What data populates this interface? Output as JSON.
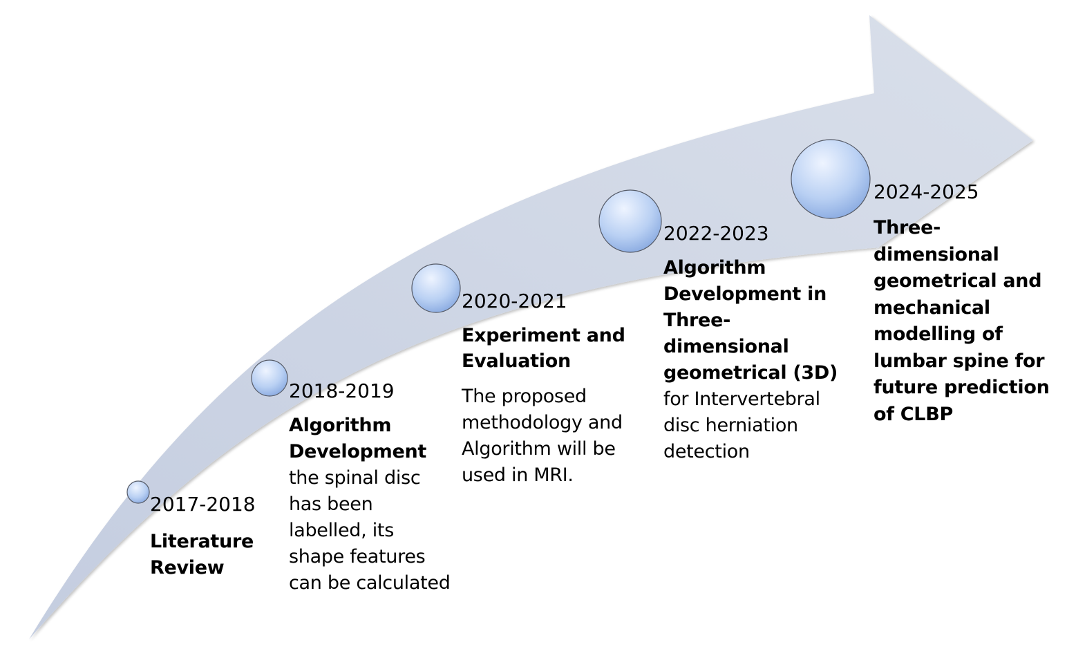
{
  "colors": {
    "arrow_fill_light": "#d9dfea",
    "arrow_fill_dark": "#c4cde0",
    "circle_highlight": "#eef4ff",
    "circle_fill": "#b9d0f3",
    "circle_shadow": "#88a9e0",
    "circle_stroke": "#555a66",
    "text": "#000000"
  },
  "milestones": [
    {
      "year": "2017-2018",
      "title": "Literature Review",
      "description": ""
    },
    {
      "year": "2018-2019",
      "title": "Algorithm Development",
      "description": "the spinal disc has been labelled, its shape features can be calculated"
    },
    {
      "year": "2020-2021",
      "title": "Experiment and Evaluation",
      "description": "The proposed methodology and Algorithm will be used in MRI."
    },
    {
      "year": "2022-2023",
      "title": "Algorithm Development in Three-dimensional geometrical (3D)",
      "description": "for Intervertebral disc herniation detection"
    },
    {
      "year": "2024-2025",
      "title": "Three-dimensional geometrical and mechanical modelling of lumbar spine for future prediction of CLBP",
      "description": ""
    }
  ]
}
